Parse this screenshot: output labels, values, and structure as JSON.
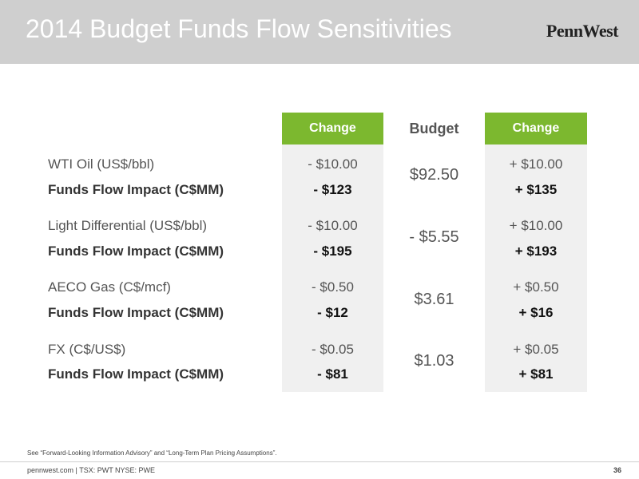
{
  "title": "2014 Budget Funds Flow Sensitivities",
  "logo": "PennWest",
  "columns": {
    "left_header": "Change",
    "budget_header": "Budget",
    "right_header": "Change"
  },
  "rows": [
    {
      "label": "WTI Oil (US$/bbl)",
      "impact_label": "Funds Flow Impact (C$MM)",
      "left_change": "- $10.00",
      "left_impact": "- $123",
      "budget": "$92.50",
      "right_change": "+ $10.00",
      "right_impact": "+ $135"
    },
    {
      "label": "Light Differential (US$/bbl)",
      "impact_label": "Funds Flow Impact (C$MM)",
      "left_change": "- $10.00",
      "left_impact": "- $195",
      "budget": "- $5.55",
      "right_change": "+ $10.00",
      "right_impact": "+ $193"
    },
    {
      "label": "AECO Gas (C$/mcf)",
      "impact_label": "Funds Flow Impact (C$MM)",
      "left_change": "- $0.50",
      "left_impact": "- $12",
      "budget": "$3.61",
      "right_change": "+ $0.50",
      "right_impact": "+ $16"
    },
    {
      "label": "FX (C$/US$)",
      "impact_label": "Funds Flow Impact (C$MM)",
      "left_change": "- $0.05",
      "left_impact": "- $81",
      "budget": "$1.03",
      "right_change": "+ $0.05",
      "right_impact": "+ $81"
    }
  ],
  "footnote": "See “Forward-Looking Information Advisory” and “Long-Term Plan Pricing Assumptions”.",
  "footer": "pennwest.com | TSX: PWT  NYSE: PWE",
  "page_number": "36",
  "colors": {
    "accent": "#7cb82f",
    "header_bg": "#cfcfcf",
    "column_bg": "#f0f0f0"
  }
}
